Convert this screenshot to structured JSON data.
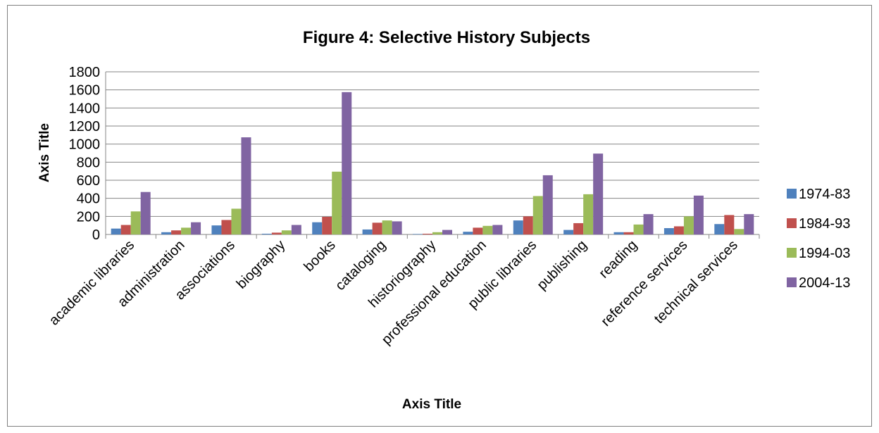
{
  "chart_data": {
    "type": "bar",
    "title": "Figure 4: Selective History Subjects",
    "xlabel": "Axis Title",
    "ylabel": "Axis Title",
    "ylim": [
      0,
      1800
    ],
    "yticks": [
      0,
      200,
      400,
      600,
      800,
      1000,
      1200,
      1400,
      1600,
      1800
    ],
    "grid": "horizontal",
    "legend_position": "right",
    "categories": [
      "academic libraries",
      "administration",
      "associations",
      "biography",
      "books",
      "cataloging",
      "historiography",
      "professional education",
      "public libraries",
      "publishing",
      "reading",
      "reference services",
      "technical services"
    ],
    "series": [
      {
        "name": "1974-83",
        "color": "#4f81bd",
        "values": [
          65,
          25,
          100,
          8,
          135,
          55,
          5,
          30,
          155,
          50,
          25,
          70,
          115
        ]
      },
      {
        "name": "1984-93",
        "color": "#c0504d",
        "values": [
          105,
          45,
          160,
          20,
          195,
          130,
          8,
          75,
          200,
          125,
          25,
          90,
          215
        ]
      },
      {
        "name": "1994-03",
        "color": "#9bbb59",
        "values": [
          255,
          75,
          285,
          45,
          695,
          155,
          25,
          95,
          425,
          445,
          110,
          200,
          60
        ]
      },
      {
        "name": "2004-13",
        "color": "#8064a2",
        "values": [
          470,
          135,
          1075,
          105,
          1575,
          145,
          50,
          105,
          655,
          895,
          225,
          430,
          225
        ]
      }
    ]
  }
}
